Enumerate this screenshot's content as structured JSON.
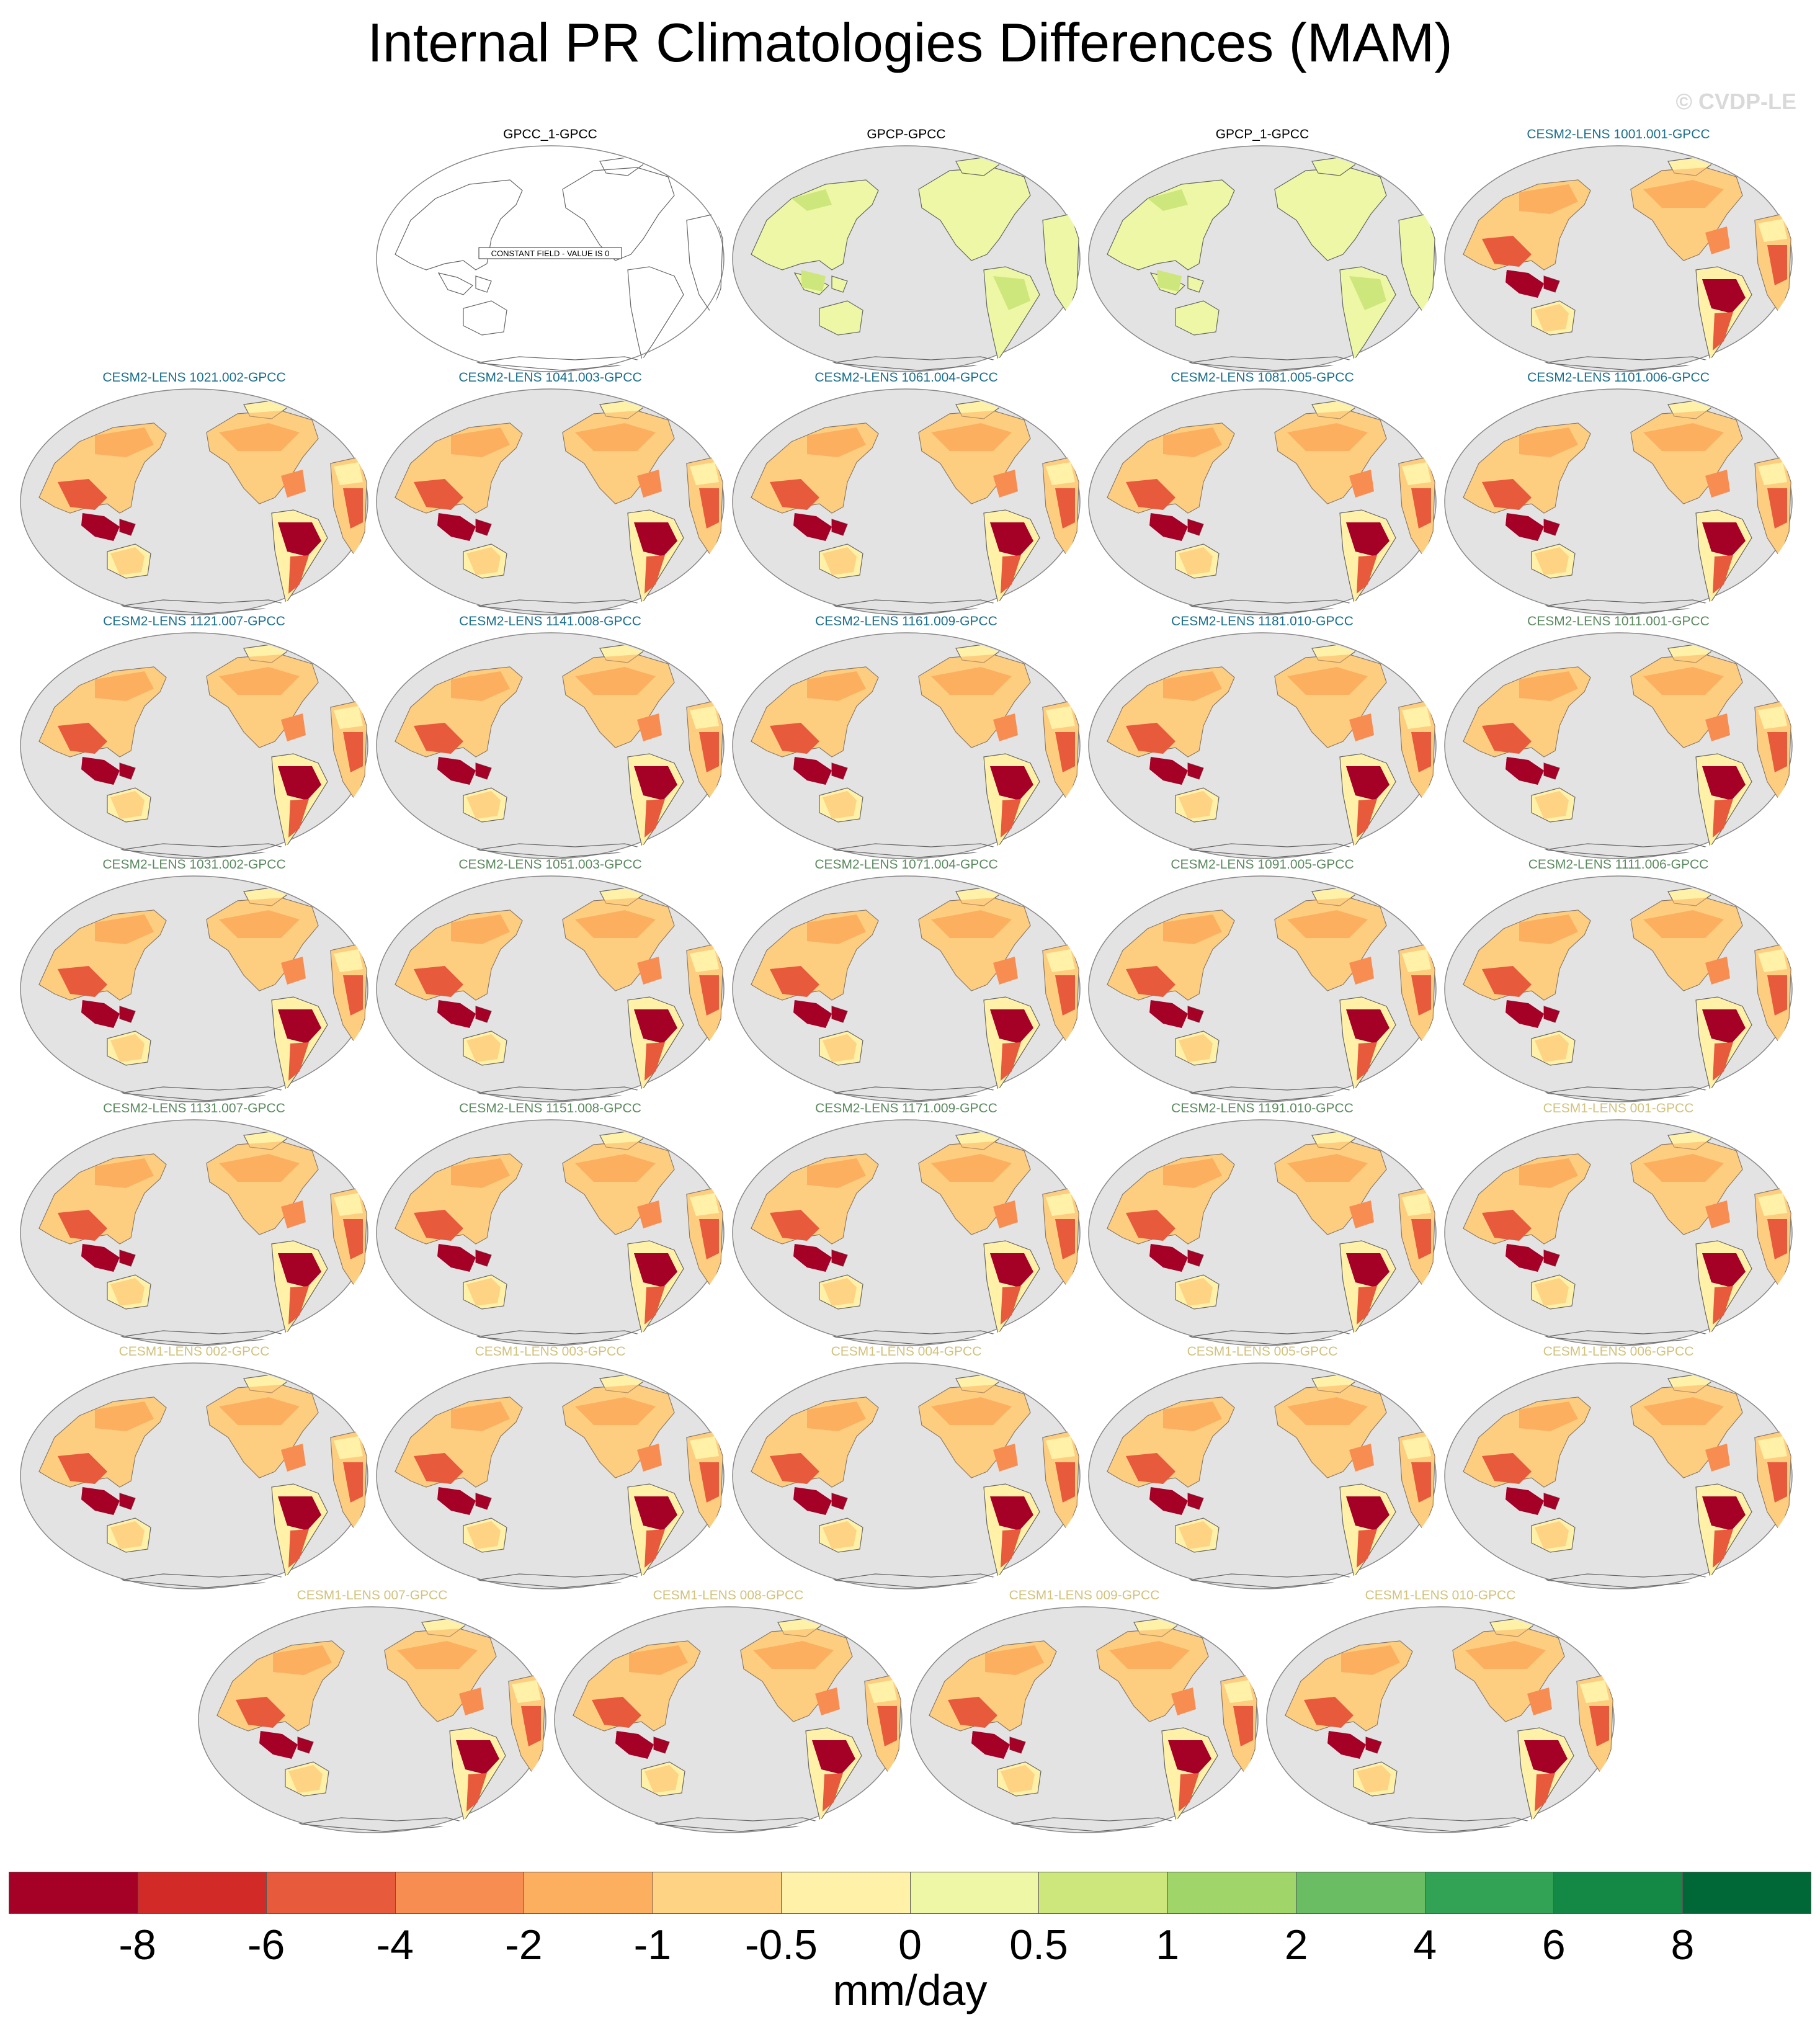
{
  "title": "Internal PR Climatologies Differences (MAM)",
  "watermark": "© CVDP-LE",
  "panels": [
    {
      "label": "GPCC_1-GPCC",
      "color": "#000000",
      "style": "constant",
      "note": "CONSTANT FIELD - VALUE IS 0"
    },
    {
      "label": "GPCP-GPCC",
      "color": "#000000",
      "style": "green"
    },
    {
      "label": "GPCP_1-GPCC",
      "color": "#000000",
      "style": "green"
    },
    {
      "label": "CESM2-LENS 1001.001-GPCC",
      "color": "#1a6f8c",
      "style": "dry"
    },
    {
      "label": "CESM2-LENS 1021.002-GPCC",
      "color": "#1a6f8c",
      "style": "dry"
    },
    {
      "label": "CESM2-LENS 1041.003-GPCC",
      "color": "#1a6f8c",
      "style": "dry"
    },
    {
      "label": "CESM2-LENS 1061.004-GPCC",
      "color": "#1a6f8c",
      "style": "dry"
    },
    {
      "label": "CESM2-LENS 1081.005-GPCC",
      "color": "#1a6f8c",
      "style": "dry"
    },
    {
      "label": "CESM2-LENS 1101.006-GPCC",
      "color": "#1a6f8c",
      "style": "dry"
    },
    {
      "label": "CESM2-LENS 1121.007-GPCC",
      "color": "#1a6f8c",
      "style": "dry"
    },
    {
      "label": "CESM2-LENS 1141.008-GPCC",
      "color": "#1a6f8c",
      "style": "dry"
    },
    {
      "label": "CESM2-LENS 1161.009-GPCC",
      "color": "#1a6f8c",
      "style": "dry"
    },
    {
      "label": "CESM2-LENS 1181.010-GPCC",
      "color": "#1a6f8c",
      "style": "dry"
    },
    {
      "label": "CESM2-LENS 1011.001-GPCC",
      "color": "#5a8a5e",
      "style": "dry"
    },
    {
      "label": "CESM2-LENS 1031.002-GPCC",
      "color": "#5a8a5e",
      "style": "dry"
    },
    {
      "label": "CESM2-LENS 1051.003-GPCC",
      "color": "#5a8a5e",
      "style": "dry"
    },
    {
      "label": "CESM2-LENS 1071.004-GPCC",
      "color": "#5a8a5e",
      "style": "dry"
    },
    {
      "label": "CESM2-LENS 1091.005-GPCC",
      "color": "#5a8a5e",
      "style": "dry"
    },
    {
      "label": "CESM2-LENS 1111.006-GPCC",
      "color": "#5a8a5e",
      "style": "dry"
    },
    {
      "label": "CESM2-LENS 1131.007-GPCC",
      "color": "#5a8a5e",
      "style": "dry"
    },
    {
      "label": "CESM2-LENS 1151.008-GPCC",
      "color": "#5a8a5e",
      "style": "dry"
    },
    {
      "label": "CESM2-LENS 1171.009-GPCC",
      "color": "#5a8a5e",
      "style": "dry"
    },
    {
      "label": "CESM2-LENS 1191.010-GPCC",
      "color": "#5a8a5e",
      "style": "dry"
    },
    {
      "label": "CESM1-LENS 001-GPCC",
      "color": "#d2c27c",
      "style": "dry"
    },
    {
      "label": "CESM1-LENS 002-GPCC",
      "color": "#d2c27c",
      "style": "dry"
    },
    {
      "label": "CESM1-LENS 003-GPCC",
      "color": "#d2c27c",
      "style": "dry"
    },
    {
      "label": "CESM1-LENS 004-GPCC",
      "color": "#d2c27c",
      "style": "dry"
    },
    {
      "label": "CESM1-LENS 005-GPCC",
      "color": "#d2c27c",
      "style": "dry"
    },
    {
      "label": "CESM1-LENS 006-GPCC",
      "color": "#d2c27c",
      "style": "dry"
    },
    {
      "label": "CESM1-LENS 007-GPCC",
      "color": "#d2c27c",
      "style": "dry"
    },
    {
      "label": "CESM1-LENS 008-GPCC",
      "color": "#d2c27c",
      "style": "dry"
    },
    {
      "label": "CESM1-LENS 009-GPCC",
      "color": "#d2c27c",
      "style": "dry"
    },
    {
      "label": "CESM1-LENS 010-GPCC",
      "color": "#d2c27c",
      "style": "dry"
    }
  ],
  "colorbar": {
    "colors": [
      "#a50026",
      "#d22b27",
      "#e75a3c",
      "#f88d52",
      "#fcb05f",
      "#fed384",
      "#fff1a8",
      "#eef7a6",
      "#cde77c",
      "#a0d669",
      "#6bbd63",
      "#32a254",
      "#138945",
      "#006837"
    ],
    "labels": [
      "-8",
      "-6",
      "-4",
      "-2",
      "-1",
      "-0.5",
      "0",
      "0.5",
      "1",
      "2",
      "4",
      "6",
      "8"
    ],
    "units": "mm/day"
  }
}
